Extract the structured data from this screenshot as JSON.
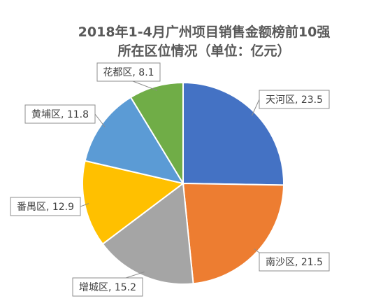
{
  "chart_data": {
    "type": "pie",
    "title": "2018年1-4月广州项目销售金额榜前10强",
    "subtitle": "所在区位情况（单位：亿元）",
    "slices": [
      {
        "label": "天河区",
        "value": 23.5,
        "display": "天河区, 23.5",
        "color": "#4472C4"
      },
      {
        "label": "南沙区",
        "value": 21.5,
        "display": "南沙区, 21.5",
        "color": "#ED7D31"
      },
      {
        "label": "增城区",
        "value": 15.2,
        "display": "增城区, 15.2",
        "color": "#A5A5A5"
      },
      {
        "label": "番禺区",
        "value": 12.9,
        "display": "番禺区, 12.9",
        "color": "#FFC000"
      },
      {
        "label": "黄埔区",
        "value": 11.8,
        "display": "黄埔区, 11.8",
        "color": "#5B9BD5"
      },
      {
        "label": "花都区",
        "value": 8.1,
        "display": "花都区, 8.1",
        "color": "#70AD47"
      }
    ],
    "start_angle": "12 o'clock",
    "direction": "clockwise",
    "legend": "none",
    "data_labels": "category and value, outside with leader lines"
  }
}
